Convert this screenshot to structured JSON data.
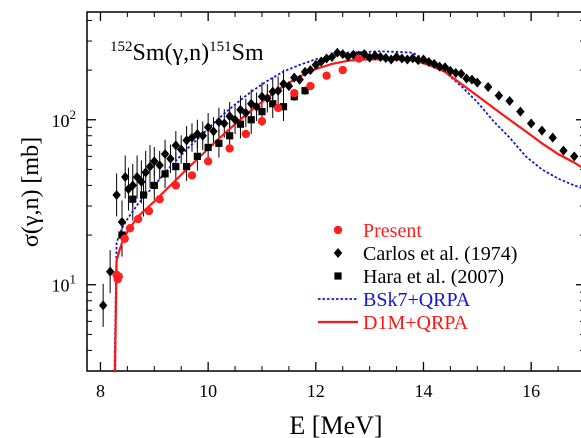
{
  "chart_data": {
    "type": "scatter",
    "title": "",
    "reaction_label": {
      "pre_mass": "152",
      "pre_text": "Sm(γ,n)",
      "post_mass": "151",
      "post_text": "Sm"
    },
    "xlabel": "E [MeV]",
    "ylabel": "σ(γ,n) [mb]",
    "xlim": [
      7.75,
      17.0
    ],
    "ylim": [
      3.0,
      450
    ],
    "yscale": "log",
    "xticks": [
      8,
      10,
      12,
      14,
      16
    ],
    "yticks": [
      {
        "value": 10,
        "base": "10",
        "exp": "1"
      },
      {
        "value": 100,
        "base": "10",
        "exp": "2"
      }
    ],
    "grid": false,
    "legend_position": "lower-right",
    "colors": {
      "present": "#ff2020",
      "carlos": "#000000",
      "hara": "#000000",
      "bsk7": "#1515d0",
      "d1m": "#ff1515"
    },
    "series": [
      {
        "name": "Present",
        "kind": "points",
        "marker": "circle",
        "color": "#ff2020",
        "x": [
          8.3,
          8.32,
          8.34,
          8.45,
          8.55,
          8.7,
          8.9,
          9.1,
          9.4,
          9.7,
          10.0,
          10.4,
          10.7,
          11.0,
          11.3,
          11.6,
          11.9,
          12.2,
          12.5,
          12.8
        ],
        "y": [
          11.5,
          10.8,
          11.2,
          19.0,
          22.0,
          25.0,
          28.0,
          33.0,
          40.0,
          46.0,
          56.0,
          67.0,
          82.0,
          98.0,
          118.0,
          145.0,
          160.0,
          185.0,
          200.0,
          235.0
        ]
      },
      {
        "name": "Carlos et al. (1974)",
        "kind": "points",
        "marker": "diamond",
        "color": "#000000",
        "x": [
          8.05,
          8.18,
          8.3,
          8.4,
          8.46,
          8.52,
          8.6,
          8.68,
          8.76,
          8.84,
          8.92,
          9.0,
          9.1,
          9.2,
          9.3,
          9.4,
          9.5,
          9.6,
          9.7,
          9.8,
          9.9,
          10.0,
          10.1,
          10.2,
          10.3,
          10.4,
          10.5,
          10.6,
          10.7,
          10.8,
          10.9,
          11.0,
          11.1,
          11.2,
          11.3,
          11.4,
          11.5,
          11.6,
          11.7,
          11.8,
          11.9,
          12.0,
          12.1,
          12.2,
          12.3,
          12.4,
          12.5,
          12.6,
          12.7,
          12.8,
          12.9,
          13.0,
          13.1,
          13.2,
          13.3,
          13.4,
          13.5,
          13.6,
          13.7,
          13.8,
          13.9,
          14.0,
          14.1,
          14.2,
          14.3,
          14.4,
          14.5,
          14.6,
          14.7,
          14.8,
          14.9,
          15.0,
          15.2,
          15.4,
          15.6,
          15.8,
          16.0,
          16.2,
          16.4,
          16.6,
          16.8,
          17.0
        ],
        "y": [
          7.5,
          12.0,
          35.0,
          24.0,
          45.0,
          38.0,
          40.0,
          45.0,
          42.0,
          48.0,
          52.0,
          56.0,
          53.0,
          62.0,
          58.0,
          70.0,
          66.0,
          75.0,
          78.0,
          82.0,
          80.0,
          90.0,
          85.0,
          97.0,
          95.0,
          105.0,
          100.0,
          115.0,
          110.0,
          125.0,
          120.0,
          138.0,
          135.0,
          148.0,
          150.0,
          165.0,
          160.0,
          180.0,
          175.0,
          195.0,
          200.0,
          215.0,
          225.0,
          235.0,
          240.0,
          255.0,
          250.0,
          242.0,
          248.0,
          245.0,
          250.0,
          238.0,
          245.0,
          240.0,
          237.0,
          232.0,
          240.0,
          235.0,
          232.0,
          236.0,
          230.0,
          232.0,
          224.0,
          218.0,
          210.0,
          208.0,
          198.0,
          192.0,
          190.0,
          178.0,
          175.0,
          168.0,
          158.0,
          140.0,
          130.0,
          112.0,
          95.0,
          86.0,
          78.0,
          65.0,
          60.0,
          52.0
        ]
      },
      {
        "name": "Hara et al. (2007)",
        "kind": "points",
        "marker": "square",
        "color": "#000000",
        "x": [
          8.4,
          8.6,
          8.8,
          9.0,
          9.2,
          9.4,
          9.6,
          9.8,
          10.0,
          10.2,
          10.4,
          10.6,
          10.8,
          11.0,
          11.2,
          11.4,
          11.6,
          11.8
        ],
        "y": [
          20.0,
          33.0,
          35.0,
          40.0,
          47.0,
          52.0,
          52.0,
          60.0,
          68.0,
          72.0,
          80.0,
          94.0,
          100.0,
          112.0,
          125.0,
          120.0,
          138.0,
          150.0
        ]
      },
      {
        "name": "BSk7+QRPA",
        "kind": "line",
        "style": "dotted",
        "color": "#1515d0",
        "x": [
          8.26,
          8.3,
          8.35,
          8.4,
          8.5,
          8.7,
          9.0,
          9.3,
          9.6,
          9.9,
          10.2,
          10.5,
          10.8,
          11.1,
          11.4,
          11.7,
          12.0,
          12.3,
          12.6,
          12.9,
          13.2,
          13.5,
          13.8,
          14.1,
          14.4,
          14.7,
          15.0,
          15.3,
          15.6,
          15.9,
          16.2,
          16.5,
          16.8,
          17.0
        ],
        "y": [
          3.0,
          18.0,
          20.0,
          22.0,
          25.0,
          31.0,
          40.0,
          52.0,
          66.0,
          82.0,
          102.0,
          124.0,
          148.0,
          172.0,
          196.0,
          215.0,
          233.0,
          245.0,
          255.0,
          258.0,
          260.0,
          258.0,
          255.0,
          225.0,
          195.0,
          160.0,
          128.0,
          98.0,
          78.0,
          60.0,
          50.0,
          44.0,
          40.0,
          38.0
        ]
      },
      {
        "name": "D1M+QRPA",
        "kind": "line",
        "style": "solid",
        "color": "#ff1515",
        "x": [
          8.27,
          8.3,
          8.35,
          8.4,
          8.5,
          8.7,
          9.0,
          9.3,
          9.6,
          9.9,
          10.2,
          10.5,
          10.8,
          11.1,
          11.4,
          11.7,
          12.0,
          12.3,
          12.6,
          12.9,
          13.2,
          13.5,
          13.8,
          14.1,
          14.4,
          14.7,
          15.0,
          15.3,
          15.6,
          15.9,
          16.2,
          16.5,
          16.8,
          17.0
        ],
        "y": [
          3.0,
          14.0,
          16.0,
          18.0,
          21.0,
          26.0,
          32.0,
          40.0,
          50.0,
          62.0,
          77.0,
          94.0,
          114.0,
          136.0,
          160.0,
          183.0,
          203.0,
          218.0,
          228.0,
          232.0,
          233.0,
          232.0,
          230.0,
          215.0,
          195.0,
          165.0,
          140.0,
          118.0,
          100.0,
          85.0,
          72.0,
          62.0,
          55.0,
          50.0
        ]
      }
    ]
  }
}
